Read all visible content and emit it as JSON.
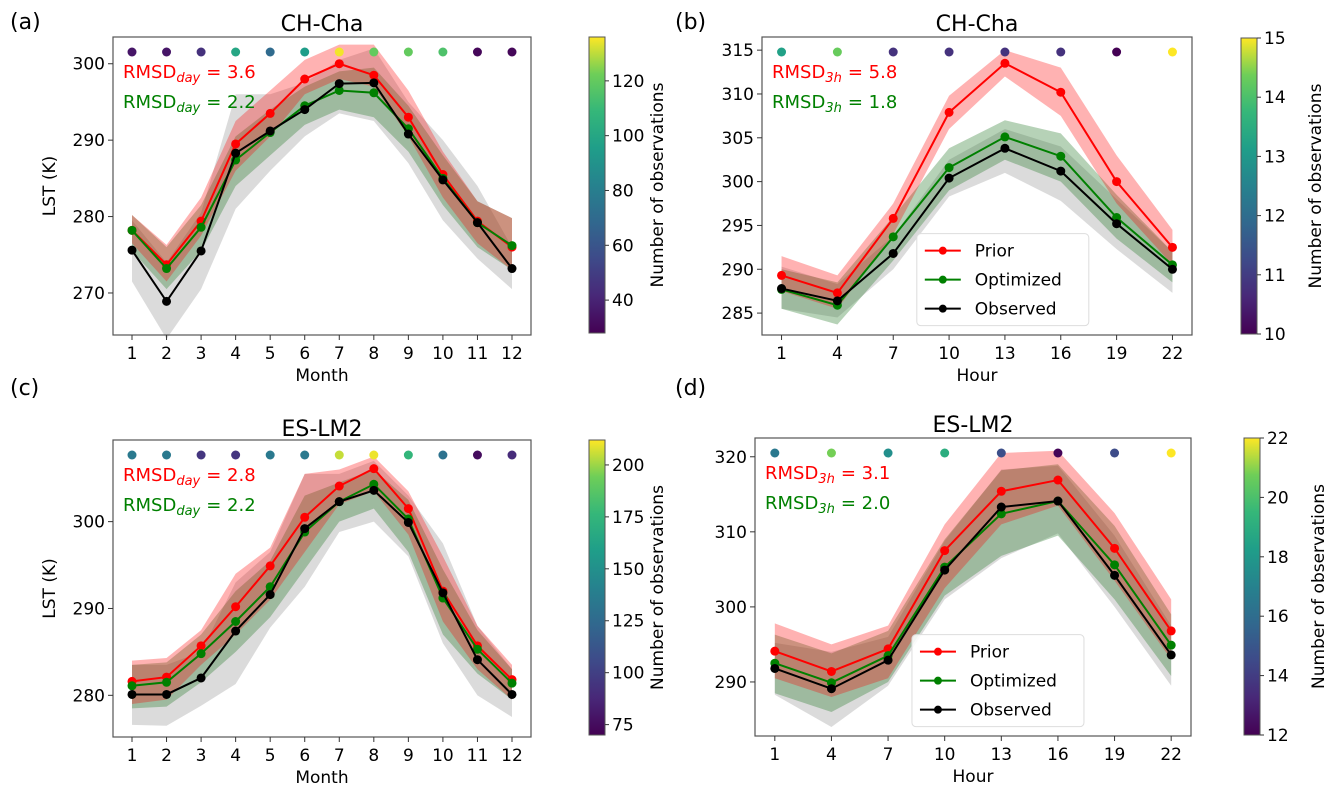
{
  "figure": {
    "panel_labels": [
      "(a)",
      "(b)",
      "(c)",
      "(d)"
    ],
    "legend": [
      "Prior",
      "Optimized",
      "Observed"
    ],
    "colors": {
      "prior": "#ff0000",
      "optimized": "#008000",
      "observed": "#000000",
      "prior_band": "#ff0000",
      "optimized_band": "#2e7d32",
      "observed_band": "#888888"
    }
  },
  "chart_data": [
    {
      "panel": "(a)",
      "type": "line",
      "title": "CH-Cha",
      "xlabel": "Month",
      "ylabel": "LST (K)",
      "x": [
        1,
        2,
        3,
        4,
        5,
        6,
        7,
        8,
        9,
        10,
        11,
        12
      ],
      "xticks": [
        "1",
        "2",
        "3",
        "4",
        "5",
        "6",
        "7",
        "8",
        "9",
        "10",
        "11",
        "12"
      ],
      "yticks": [
        270,
        280,
        290,
        300
      ],
      "ylim": [
        264.5,
        303.5
      ],
      "xlim": [
        0.45,
        12.55
      ],
      "series": [
        {
          "name": "Prior",
          "values": [
            278.2,
            273.7,
            279.4,
            289.5,
            293.5,
            298.0,
            300.0,
            298.5,
            293.0,
            285.5,
            279.4,
            276.0
          ],
          "band_low": [
            276.5,
            271.5,
            277.5,
            286.0,
            290.5,
            296.0,
            298.0,
            297.0,
            290.5,
            282.5,
            276.5,
            273.0
          ],
          "band_high": [
            280.2,
            276.3,
            282.5,
            292.5,
            296.5,
            300.5,
            302.5,
            302.5,
            296.5,
            288.5,
            282.0,
            279.8
          ]
        },
        {
          "name": "Optimized",
          "values": [
            278.2,
            273.2,
            278.6,
            287.4,
            291.0,
            294.5,
            296.5,
            296.2,
            291.5,
            285.0,
            279.2,
            276.2
          ],
          "band_low": [
            275.5,
            270.5,
            275.5,
            284.0,
            288.0,
            292.0,
            294.0,
            293.0,
            288.5,
            281.5,
            276.0,
            273.0
          ],
          "band_high": [
            280.2,
            276.0,
            281.5,
            290.5,
            294.0,
            297.0,
            299.0,
            299.5,
            294.5,
            288.0,
            282.0,
            279.8
          ]
        },
        {
          "name": "Observed",
          "values": [
            275.6,
            268.9,
            275.5,
            288.3,
            291.2,
            294.0,
            297.4,
            297.5,
            290.8,
            284.8,
            279.2,
            273.2
          ],
          "band_low": [
            271.5,
            264.0,
            270.5,
            281.0,
            286.0,
            290.5,
            293.5,
            292.5,
            287.0,
            279.5,
            274.5,
            270.5
          ],
          "band_high": [
            279.5,
            274.0,
            280.5,
            296.0,
            296.0,
            297.5,
            300.5,
            302.0,
            295.0,
            290.0,
            284.0,
            276.0
          ]
        }
      ],
      "rmsd": [
        {
          "label": "RMSD",
          "subscript": "day",
          "value": "= 3.6",
          "color": "#ff0000"
        },
        {
          "label": "RMSD",
          "subscript": "day",
          "value": "= 2.2",
          "color": "#008000"
        }
      ],
      "obs_counts": [
        35,
        35,
        45,
        100,
        70,
        95,
        135,
        120,
        120,
        115,
        30,
        30
      ],
      "colorbar": {
        "label": "Number of observations",
        "range": [
          28,
          136
        ],
        "ticks": [
          40,
          60,
          80,
          100,
          120
        ]
      },
      "legend": null
    },
    {
      "panel": "(b)",
      "type": "line",
      "title": "CH-Cha",
      "xlabel": "Hour",
      "ylabel": "",
      "x": [
        1,
        4,
        7,
        10,
        13,
        16,
        19,
        22
      ],
      "xticks": [
        "1",
        "4",
        "7",
        "10",
        "13",
        "16",
        "19",
        "22"
      ],
      "yticks": [
        285,
        290,
        295,
        300,
        305,
        310,
        315
      ],
      "ylim": [
        282.5,
        316.5
      ],
      "xlim": [
        -0.05,
        23.05
      ],
      "series": [
        {
          "name": "Prior",
          "values": [
            289.3,
            287.3,
            295.8,
            307.9,
            313.5,
            310.2,
            300.0,
            292.5
          ],
          "band_low": [
            287.5,
            285.5,
            294.0,
            306.0,
            312.0,
            307.5,
            297.5,
            290.5
          ],
          "band_high": [
            291.5,
            289.3,
            297.5,
            309.8,
            315.0,
            313.0,
            303.0,
            294.5
          ]
        },
        {
          "name": "Optimized",
          "values": [
            287.7,
            285.9,
            293.7,
            301.6,
            305.1,
            302.9,
            295.9,
            290.5
          ],
          "band_low": [
            285.5,
            283.7,
            291.0,
            299.0,
            302.5,
            300.0,
            293.5,
            288.5
          ],
          "band_high": [
            290.0,
            288.5,
            296.0,
            303.8,
            307.0,
            305.5,
            298.5,
            292.0
          ]
        },
        {
          "name": "Observed",
          "values": [
            287.8,
            286.4,
            291.8,
            300.4,
            303.8,
            301.2,
            295.2,
            290.0
          ],
          "band_low": [
            285.5,
            284.5,
            290.0,
            298.3,
            301.0,
            297.8,
            292.3,
            287.3
          ],
          "band_high": [
            290.3,
            288.3,
            293.8,
            302.5,
            306.0,
            304.0,
            298.0,
            292.0
          ]
        }
      ],
      "rmsd": [
        {
          "label": "RMSD",
          "subscript": "3h",
          "value": "= 5.8",
          "color": "#ff0000"
        },
        {
          "label": "RMSD",
          "subscript": "3h",
          "value": "= 1.8",
          "color": "#008000"
        }
      ],
      "obs_counts": [
        13.2,
        14.3,
        10.8,
        10.8,
        10.8,
        10.8,
        10.0,
        15.0
      ],
      "colorbar": {
        "label": "Number of observations",
        "range": [
          10,
          15
        ],
        "ticks": [
          10,
          11,
          12,
          13,
          14,
          15
        ]
      },
      "legend": "lower-center"
    },
    {
      "panel": "(c)",
      "type": "line",
      "title": "ES-LM2",
      "xlabel": "Month",
      "ylabel": "LST (K)",
      "x": [
        1,
        2,
        3,
        4,
        5,
        6,
        7,
        8,
        9,
        10,
        11,
        12
      ],
      "xticks": [
        "1",
        "2",
        "3",
        "4",
        "5",
        "6",
        "7",
        "8",
        "9",
        "10",
        "11",
        "12"
      ],
      "yticks": [
        280,
        290,
        300
      ],
      "ylim": [
        275.2,
        309.4
      ],
      "xlim": [
        0.45,
        12.55
      ],
      "series": [
        {
          "name": "Prior",
          "values": [
            281.6,
            282.1,
            285.7,
            290.2,
            294.9,
            300.5,
            304.1,
            306.1,
            301.5,
            292.0,
            285.7,
            281.8
          ],
          "band_low": [
            279.0,
            279.5,
            283.5,
            287.0,
            291.0,
            296.5,
            302.0,
            303.5,
            298.5,
            288.5,
            283.0,
            279.5
          ],
          "band_high": [
            284.0,
            284.3,
            287.5,
            294.0,
            297.0,
            305.5,
            306.0,
            307.5,
            303.5,
            296.0,
            288.0,
            283.5
          ]
        },
        {
          "name": "Optimized",
          "values": [
            281.1,
            281.5,
            284.8,
            288.5,
            292.5,
            298.8,
            302.3,
            304.3,
            300.3,
            291.2,
            285.3,
            281.4
          ],
          "band_low": [
            278.5,
            278.7,
            281.5,
            285.0,
            289.0,
            294.5,
            300.0,
            301.5,
            296.5,
            287.0,
            282.5,
            279.5
          ],
          "band_high": [
            283.5,
            283.8,
            287.0,
            292.0,
            295.5,
            303.0,
            304.5,
            306.0,
            302.5,
            294.5,
            287.5,
            283.0
          ]
        },
        {
          "name": "Observed",
          "values": [
            280.1,
            280.1,
            282.0,
            287.4,
            291.6,
            299.2,
            302.3,
            303.6,
            299.9,
            291.8,
            284.1,
            280.1
          ],
          "band_low": [
            276.6,
            276.5,
            278.8,
            281.3,
            287.8,
            292.5,
            298.8,
            300.0,
            296.0,
            286.0,
            280.0,
            277.5
          ],
          "band_high": [
            283.5,
            283.5,
            285.0,
            293.0,
            296.5,
            305.5,
            305.5,
            307.0,
            303.0,
            297.5,
            288.0,
            283.0
          ]
        }
      ],
      "rmsd": [
        {
          "label": "RMSD",
          "subscript": "day",
          "value": "= 2.8",
          "color": "#ff0000"
        },
        {
          "label": "RMSD",
          "subscript": "day",
          "value": "= 2.2",
          "color": "#008000"
        }
      ],
      "obs_counts": [
        135,
        135,
        95,
        95,
        135,
        135,
        205,
        210,
        175,
        130,
        75,
        90
      ],
      "colorbar": {
        "label": "Number of observations",
        "range": [
          70,
          212
        ],
        "ticks": [
          75,
          100,
          125,
          150,
          175,
          200
        ]
      },
      "legend": null
    },
    {
      "panel": "(d)",
      "type": "line",
      "title": "ES-LM2",
      "xlabel": "Hour",
      "ylabel": "",
      "x": [
        1,
        4,
        7,
        10,
        13,
        16,
        19,
        22
      ],
      "xticks": [
        "1",
        "4",
        "7",
        "10",
        "13",
        "16",
        "19",
        "22"
      ],
      "yticks": [
        290,
        300,
        310,
        320
      ],
      "ylim": [
        282.8,
        322.5
      ],
      "xlim": [
        -0.05,
        23.05
      ],
      "series": [
        {
          "name": "Prior",
          "values": [
            294.1,
            291.4,
            294.4,
            307.5,
            315.4,
            316.9,
            307.8,
            296.8
          ],
          "band_low": [
            290.5,
            288.0,
            290.5,
            302.5,
            311.0,
            313.5,
            303.5,
            293.0
          ],
          "band_high": [
            297.8,
            295.0,
            297.5,
            311.0,
            320.5,
            320.8,
            312.5,
            301.0
          ]
        },
        {
          "name": "Optimized",
          "values": [
            292.5,
            289.9,
            293.5,
            305.3,
            312.4,
            314.1,
            305.6,
            294.9
          ],
          "band_low": [
            288.5,
            286.0,
            290.0,
            301.5,
            306.8,
            309.5,
            301.0,
            290.8
          ],
          "band_high": [
            296.3,
            293.8,
            296.8,
            309.0,
            318.2,
            319.0,
            310.8,
            299.0
          ]
        },
        {
          "name": "Observed",
          "values": [
            291.8,
            289.1,
            292.9,
            304.9,
            313.3,
            314.1,
            304.2,
            293.6
          ],
          "band_low": [
            288.3,
            284.0,
            289.5,
            301.0,
            306.5,
            309.8,
            300.0,
            289.5
          ],
          "band_high": [
            295.2,
            294.0,
            296.0,
            308.8,
            318.3,
            318.8,
            309.5,
            297.5
          ]
        }
      ],
      "rmsd": [
        {
          "label": "RMSD",
          "subscript": "3h",
          "value": "= 3.1",
          "color": "#ff0000"
        },
        {
          "label": "RMSD",
          "subscript": "3h",
          "value": "= 2.0",
          "color": "#008000"
        }
      ],
      "obs_counts": [
        16.5,
        20.8,
        17.6,
        19.0,
        14.7,
        12.1,
        14.6,
        22.0
      ],
      "colorbar": {
        "label": "Number of observations",
        "range": [
          12,
          22
        ],
        "ticks": [
          12,
          14,
          16,
          18,
          20,
          22
        ]
      },
      "legend": "lower-center"
    }
  ]
}
